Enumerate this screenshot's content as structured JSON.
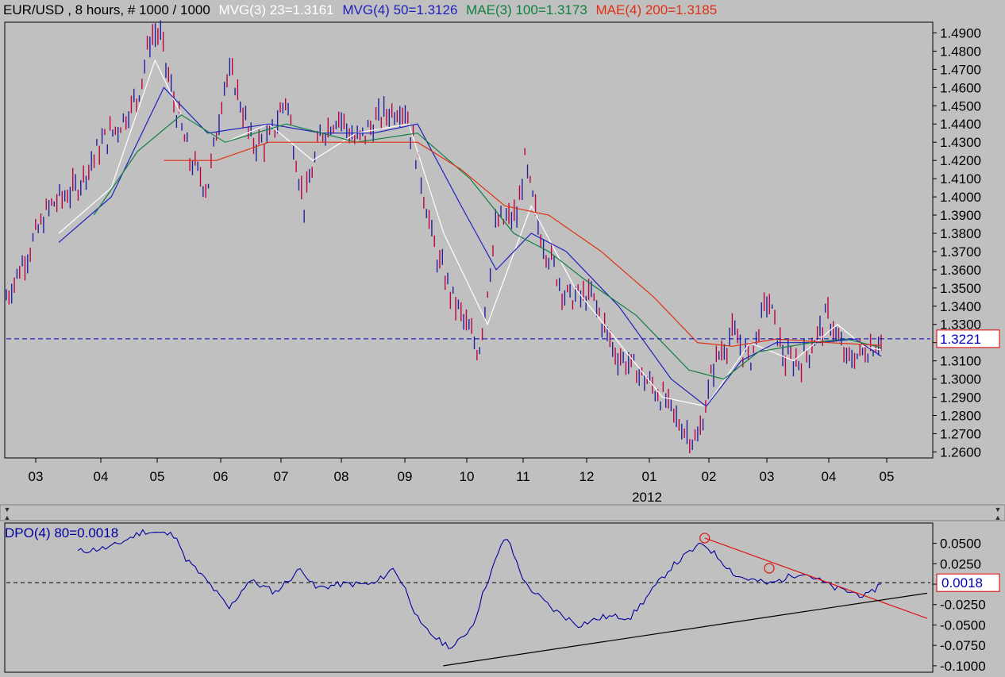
{
  "header": {
    "symbol_info": "EUR/USD , 8 hours, # 1000 / 1000",
    "indicators": [
      {
        "label": "MVG(3) 23=1.3161",
        "color": "#ffffff"
      },
      {
        "label": "MVG(4) 50=1.3126",
        "color": "#2020c0"
      },
      {
        "label": "MAE(3) 100=1.3173",
        "color": "#108040"
      },
      {
        "label": "MAE(4) 200=1.3185",
        "color": "#e03010"
      }
    ]
  },
  "dpo": {
    "label": "DPO(4) 80=0.0018",
    "current_value_label": "0.0018",
    "tick_labels": [
      "0.0500",
      "0.0250",
      "0.0000",
      "-0.0250",
      "-0.0500",
      "-0.0750",
      "-0.1000"
    ]
  },
  "chart_data": [
    {
      "type": "candlestick",
      "title": "EUR/USD , 8 hours, # 1000 / 1000",
      "x_tick_labels": [
        "03",
        "04",
        "05",
        "06",
        "07",
        "08",
        "09",
        "10",
        "11",
        "12",
        "01",
        "02",
        "03",
        "04",
        "05"
      ],
      "x_year_label": "2012",
      "y_tick_labels": [
        "1.4900",
        "1.4800",
        "1.4700",
        "1.4600",
        "1.4500",
        "1.4400",
        "1.4300",
        "1.4200",
        "1.4100",
        "1.4000",
        "1.3900",
        "1.3800",
        "1.3700",
        "1.3600",
        "1.3500",
        "1.3400",
        "1.3300",
        "1.3200",
        "1.3100",
        "1.3000",
        "1.2900",
        "1.2800",
        "1.2700",
        "1.2600"
      ],
      "ylim": [
        1.258,
        1.495
      ],
      "current_price": 1.3221,
      "current_price_label": "1.3221",
      "price_path": [
        [
          0,
          1.345
        ],
        [
          0.02,
          1.365
        ],
        [
          0.05,
          1.395
        ],
        [
          0.08,
          1.405
        ],
        [
          0.11,
          1.43
        ],
        [
          0.13,
          1.44
        ],
        [
          0.15,
          1.455
        ],
        [
          0.165,
          1.488
        ],
        [
          0.175,
          1.49
        ],
        [
          0.19,
          1.455
        ],
        [
          0.21,
          1.42
        ],
        [
          0.23,
          1.405
        ],
        [
          0.25,
          1.465
        ],
        [
          0.26,
          1.465
        ],
        [
          0.28,
          1.43
        ],
        [
          0.3,
          1.43
        ],
        [
          0.32,
          1.455
        ],
        [
          0.34,
          1.395
        ],
        [
          0.36,
          1.435
        ],
        [
          0.38,
          1.445
        ],
        [
          0.4,
          1.43
        ],
        [
          0.43,
          1.445
        ],
        [
          0.455,
          1.45
        ],
        [
          0.47,
          1.42
        ],
        [
          0.49,
          1.37
        ],
        [
          0.51,
          1.345
        ],
        [
          0.525,
          1.33
        ],
        [
          0.54,
          1.315
        ],
        [
          0.56,
          1.385
        ],
        [
          0.585,
          1.39
        ],
        [
          0.592,
          1.42
        ],
        [
          0.61,
          1.38
        ],
        [
          0.64,
          1.345
        ],
        [
          0.67,
          1.345
        ],
        [
          0.695,
          1.315
        ],
        [
          0.72,
          1.305
        ],
        [
          0.75,
          1.29
        ],
        [
          0.77,
          1.275
        ],
        [
          0.79,
          1.265
        ],
        [
          0.81,
          1.31
        ],
        [
          0.83,
          1.325
        ],
        [
          0.85,
          1.31
        ],
        [
          0.87,
          1.345
        ],
        [
          0.89,
          1.31
        ],
        [
          0.91,
          1.31
        ],
        [
          0.94,
          1.335
        ],
        [
          0.96,
          1.31
        ],
        [
          0.98,
          1.315
        ],
        [
          1.0,
          1.322
        ]
      ],
      "series": [
        {
          "name": "MVG(3) 23",
          "last": 1.3161,
          "color": "#ffffff",
          "path": [
            [
              0.06,
              1.38
            ],
            [
              0.12,
              1.405
            ],
            [
              0.17,
              1.475
            ],
            [
              0.2,
              1.445
            ],
            [
              0.25,
              1.43
            ],
            [
              0.3,
              1.44
            ],
            [
              0.35,
              1.42
            ],
            [
              0.4,
              1.435
            ],
            [
              0.46,
              1.44
            ],
            [
              0.5,
              1.38
            ],
            [
              0.55,
              1.33
            ],
            [
              0.6,
              1.395
            ],
            [
              0.65,
              1.35
            ],
            [
              0.7,
              1.32
            ],
            [
              0.75,
              1.29
            ],
            [
              0.8,
              1.285
            ],
            [
              0.85,
              1.32
            ],
            [
              0.9,
              1.31
            ],
            [
              0.95,
              1.33
            ],
            [
              0.98,
              1.318
            ],
            [
              1.0,
              1.316
            ]
          ]
        },
        {
          "name": "MVG(4) 50",
          "last": 1.3126,
          "color": "#2020c0",
          "path": [
            [
              0.06,
              1.375
            ],
            [
              0.12,
              1.4
            ],
            [
              0.18,
              1.46
            ],
            [
              0.23,
              1.435
            ],
            [
              0.3,
              1.44
            ],
            [
              0.36,
              1.435
            ],
            [
              0.42,
              1.435
            ],
            [
              0.47,
              1.44
            ],
            [
              0.52,
              1.395
            ],
            [
              0.56,
              1.36
            ],
            [
              0.6,
              1.38
            ],
            [
              0.64,
              1.37
            ],
            [
              0.7,
              1.34
            ],
            [
              0.76,
              1.3
            ],
            [
              0.8,
              1.285
            ],
            [
              0.84,
              1.31
            ],
            [
              0.88,
              1.32
            ],
            [
              0.93,
              1.32
            ],
            [
              0.97,
              1.322
            ],
            [
              1.0,
              1.3126
            ]
          ]
        },
        {
          "name": "MAE(3) 100",
          "last": 1.3173,
          "color": "#108040",
          "path": [
            [
              0.1,
              1.39
            ],
            [
              0.15,
              1.425
            ],
            [
              0.2,
              1.445
            ],
            [
              0.25,
              1.43
            ],
            [
              0.32,
              1.44
            ],
            [
              0.4,
              1.43
            ],
            [
              0.47,
              1.435
            ],
            [
              0.53,
              1.41
            ],
            [
              0.58,
              1.38
            ],
            [
              0.62,
              1.37
            ],
            [
              0.66,
              1.355
            ],
            [
              0.72,
              1.335
            ],
            [
              0.78,
              1.305
            ],
            [
              0.82,
              1.3
            ],
            [
              0.86,
              1.315
            ],
            [
              0.92,
              1.32
            ],
            [
              0.96,
              1.322
            ],
            [
              1.0,
              1.3173
            ]
          ]
        },
        {
          "name": "MAE(4) 200",
          "last": 1.3185,
          "color": "#e03010",
          "path": [
            [
              0.18,
              1.42
            ],
            [
              0.24,
              1.42
            ],
            [
              0.3,
              1.43
            ],
            [
              0.38,
              1.43
            ],
            [
              0.47,
              1.43
            ],
            [
              0.52,
              1.415
            ],
            [
              0.57,
              1.395
            ],
            [
              0.62,
              1.39
            ],
            [
              0.68,
              1.37
            ],
            [
              0.74,
              1.345
            ],
            [
              0.79,
              1.32
            ],
            [
              0.83,
              1.318
            ],
            [
              0.88,
              1.322
            ],
            [
              0.94,
              1.32
            ],
            [
              1.0,
              1.3185
            ]
          ]
        }
      ]
    },
    {
      "type": "line",
      "title": "DPO(4) 80=0.0018",
      "ylim": [
        -0.105,
        0.072
      ],
      "current_value": 0.0018,
      "series": [
        {
          "name": "DPO(4) 80",
          "color": "#0000a0",
          "path": [
            [
              0.0,
              0.04
            ],
            [
              0.05,
              0.045
            ],
            [
              0.1,
              0.065
            ],
            [
              0.15,
              0.06
            ],
            [
              0.16,
              0.035
            ],
            [
              0.2,
              0.0
            ],
            [
              0.23,
              -0.03
            ],
            [
              0.26,
              0.005
            ],
            [
              0.3,
              -0.01
            ],
            [
              0.34,
              0.02
            ],
            [
              0.36,
              -0.005
            ],
            [
              0.4,
              0.0
            ],
            [
              0.45,
              0.0
            ],
            [
              0.48,
              0.02
            ],
            [
              0.5,
              -0.01
            ],
            [
              0.52,
              -0.05
            ],
            [
              0.55,
              -0.07
            ],
            [
              0.57,
              -0.078
            ],
            [
              0.6,
              -0.05
            ],
            [
              0.62,
              0.0
            ],
            [
              0.65,
              0.06
            ],
            [
              0.68,
              0.0
            ],
            [
              0.72,
              -0.03
            ],
            [
              0.76,
              -0.05
            ],
            [
              0.8,
              -0.04
            ],
            [
              0.84,
              -0.04
            ],
            [
              0.87,
              -0.01
            ],
            [
              0.9,
              0.02
            ],
            [
              0.93,
              0.04
            ],
            [
              0.95,
              0.05
            ],
            [
              0.97,
              0.035
            ],
            [
              1.0,
              0.01
            ],
            [
              1.05,
              0.0
            ],
            [
              1.1,
              0.015
            ],
            [
              1.15,
              -0.005
            ],
            [
              1.2,
              -0.015
            ],
            [
              1.22,
              0.0018
            ]
          ]
        }
      ],
      "trendlines": [
        {
          "name": "resistance",
          "color": "#e01010",
          "from": [
            0.952,
            0.0565
          ],
          "to": [
            1.29,
            -0.042
          ],
          "markers": [
            [
              0.952,
              0.0565
            ],
            [
              1.05,
              0.0195
            ]
          ]
        },
        {
          "name": "support",
          "color": "#000000",
          "from": [
            0.555,
            -0.1
          ],
          "to": [
            1.29,
            -0.011
          ]
        }
      ]
    }
  ]
}
